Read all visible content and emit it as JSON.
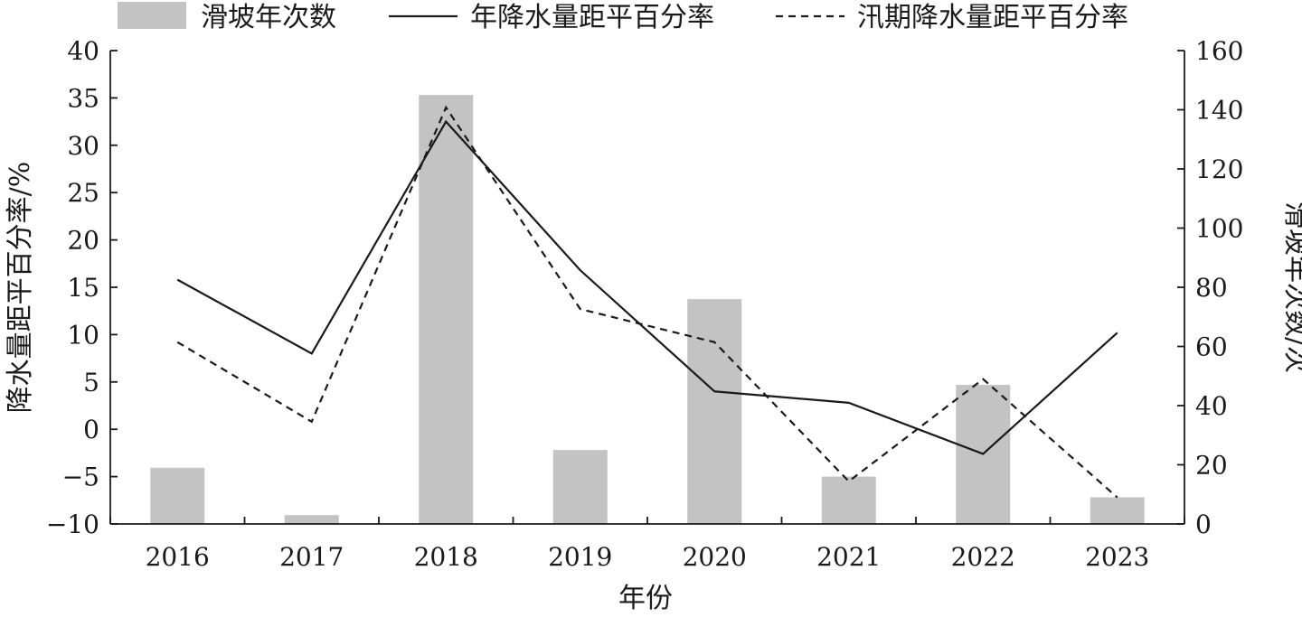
{
  "chart_data": {
    "type": "bar+line",
    "x": [
      "2016",
      "2017",
      "2018",
      "2019",
      "2020",
      "2021",
      "2022",
      "2023"
    ],
    "xlabel": "年份",
    "ylabel_left": "降水量距平百分率/%",
    "ylabel_right": "滑坡年次数/次",
    "ylim_left": [
      -10,
      40
    ],
    "yticks_left": [
      "−10",
      "−5",
      "0",
      "5",
      "10",
      "15",
      "20",
      "25",
      "30",
      "35",
      "40"
    ],
    "ylim_right": [
      0,
      160
    ],
    "yticks_right": [
      "0",
      "20",
      "40",
      "60",
      "80",
      "100",
      "120",
      "140",
      "160"
    ],
    "grid": false,
    "legend_position": "top",
    "legend": [
      "滑坡年次数",
      "年降水量距平百分率",
      "汛期降水量距平百分率"
    ],
    "series": [
      {
        "name": "滑坡年次数",
        "kind": "bar",
        "axis": "right",
        "color": "#c4c3c4",
        "values": [
          19,
          3,
          145,
          25,
          76,
          16,
          47,
          9
        ]
      },
      {
        "name": "年降水量距平百分率",
        "kind": "line",
        "axis": "left",
        "style": "solid",
        "color": "#1a1a1a",
        "values": [
          15.8,
          8,
          32.5,
          16.8,
          4,
          2.8,
          -2.6,
          10.2
        ]
      },
      {
        "name": "汛期降水量距平百分率",
        "kind": "line",
        "axis": "left",
        "style": "dashed",
        "color": "#1a1a1a",
        "values": [
          9.2,
          0.8,
          34,
          12.7,
          9.2,
          -5.5,
          5.3,
          -7.2
        ]
      }
    ]
  }
}
